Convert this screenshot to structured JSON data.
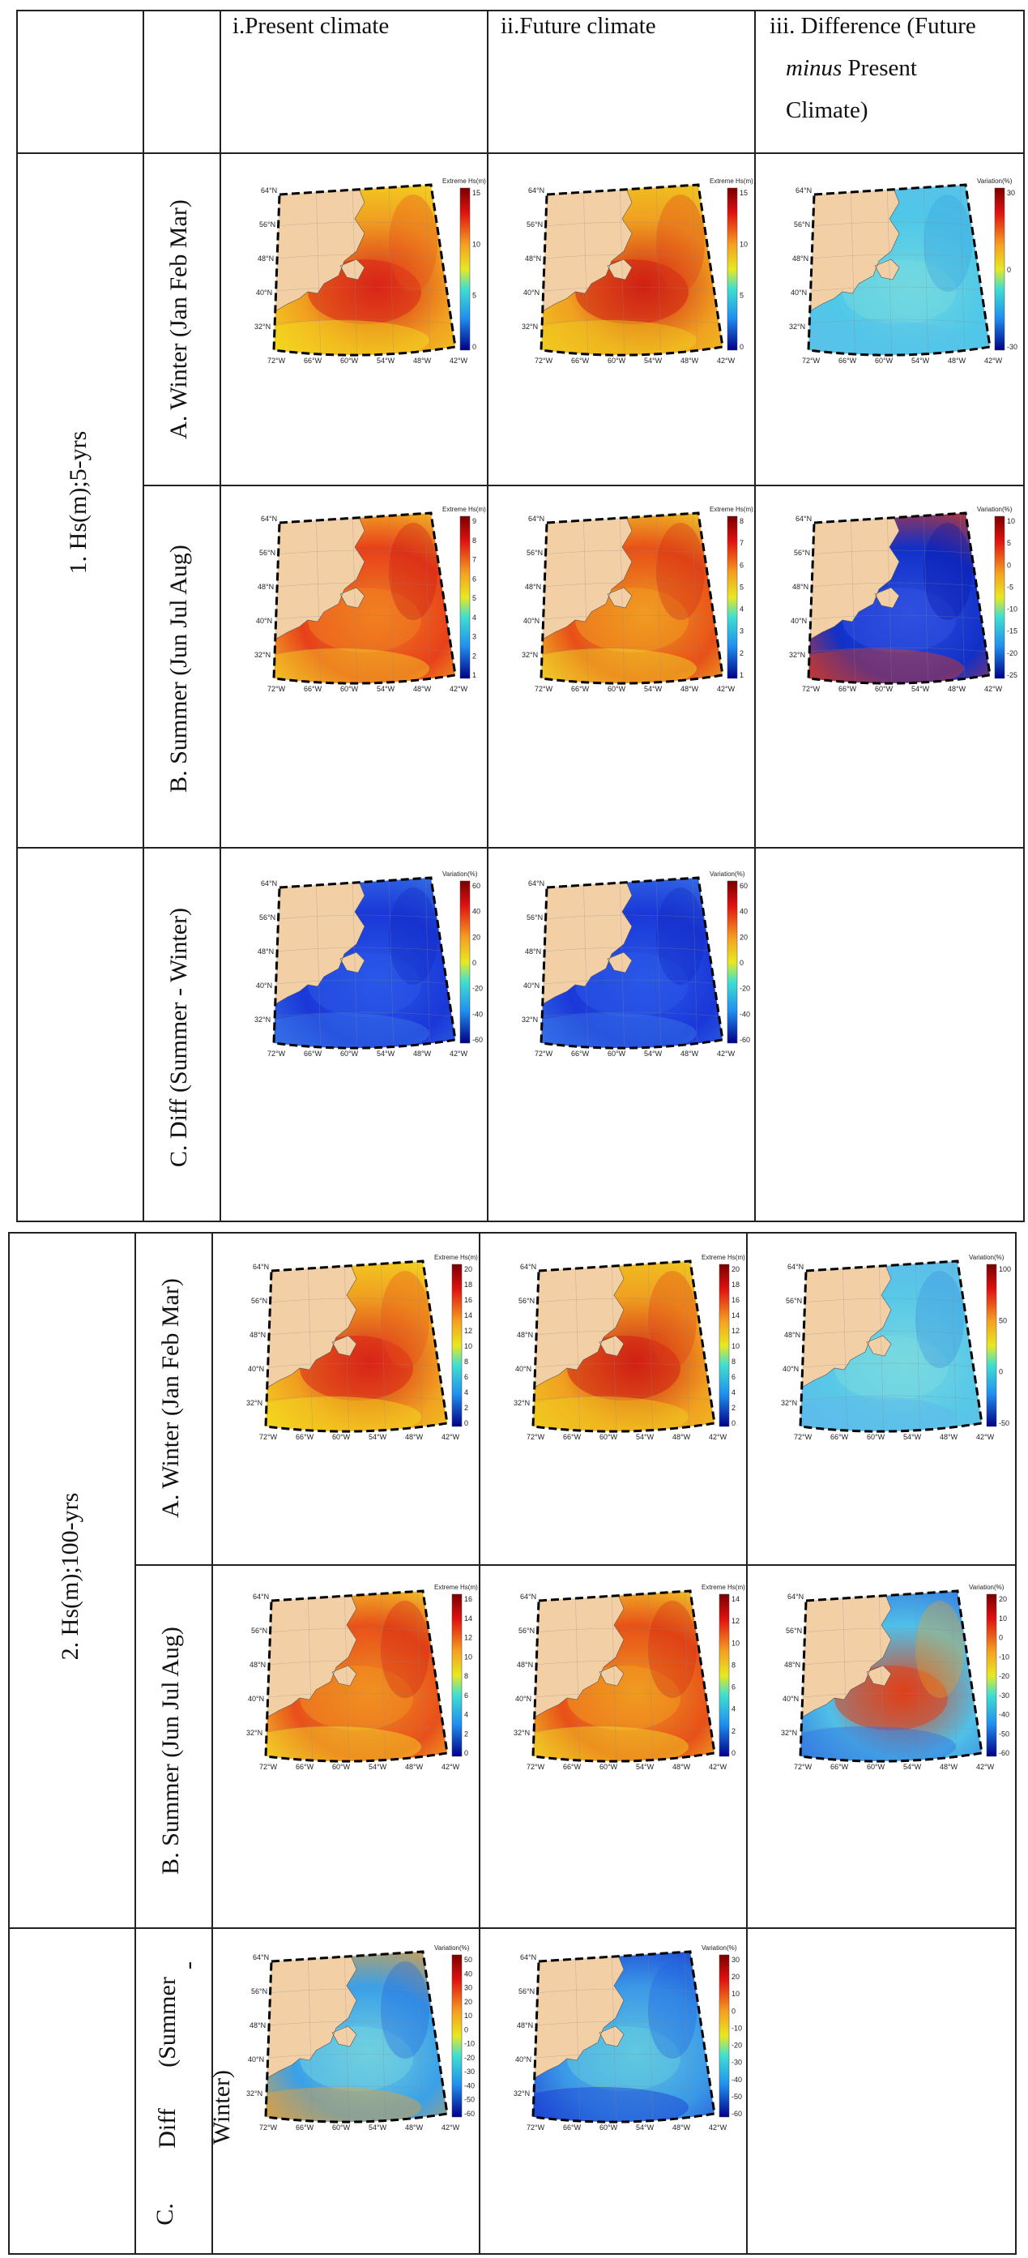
{
  "headers": {
    "present": "i.Present climate",
    "future": "ii.Future climate",
    "diff_line1": "iii. Difference (Future",
    "diff_line2_em": "minus",
    "diff_line2_rest": " Present",
    "diff_line3": "Climate)"
  },
  "groups": [
    {
      "label": "1.  Hs(m);5-yrs",
      "rows": [
        {
          "label": "A. Winter (Jan Feb Mar)"
        },
        {
          "label": "B. Summer (Jun Jul Aug)"
        },
        {
          "label": "C. Diff (Summer - Winter)"
        }
      ]
    },
    {
      "label": "2.  Hs(m);100-yrs",
      "rows": [
        {
          "label": "A.    Winter (Jan Feb Mar)"
        },
        {
          "label": "B.    Summer (Jun Jul Aug)"
        },
        {
          "label_c": "C.",
          "label_diff": "Diff",
          "label_summer": "(Summer",
          "label_dash": "-",
          "label_winter": "Winter)"
        }
      ]
    }
  ],
  "map_labels": {
    "lat": [
      "64°N",
      "56°N",
      "48°N",
      "40°N",
      "32°N"
    ],
    "lon": [
      "72°W",
      "66°W",
      "60°W",
      "54°W",
      "48°W",
      "42°W"
    ]
  },
  "colorbars": {
    "extreme_title": "Extreme Hs(m)",
    "variation_title": "Variation(%)",
    "g1_winter_present": [
      "15",
      "10",
      "5",
      "0"
    ],
    "g1_winter_future": [
      "15",
      "10",
      "5",
      "0"
    ],
    "g1_winter_diff": [
      "30",
      "0",
      "-30"
    ],
    "g1_summer_present": [
      "9",
      "8",
      "7",
      "6",
      "5",
      "4",
      "3",
      "2",
      "1"
    ],
    "g1_summer_future": [
      "8",
      "7",
      "6",
      "5",
      "4",
      "3",
      "2",
      "1"
    ],
    "g1_summer_diff": [
      "10",
      "5",
      "0",
      "-5",
      "-10",
      "-15",
      "-20",
      "-25"
    ],
    "g1_c_present": [
      "60",
      "40",
      "20",
      "0",
      "-20",
      "-40",
      "-60"
    ],
    "g1_c_future": [
      "60",
      "40",
      "20",
      "0",
      "-20",
      "-40",
      "-60"
    ],
    "g2_winter_present": [
      "20",
      "18",
      "16",
      "14",
      "12",
      "10",
      "8",
      "6",
      "4",
      "2",
      "0"
    ],
    "g2_winter_future": [
      "20",
      "18",
      "16",
      "14",
      "12",
      "10",
      "8",
      "6",
      "4",
      "2",
      "0"
    ],
    "g2_winter_diff": [
      "100",
      "50",
      "0",
      "-50"
    ],
    "g2_summer_present": [
      "16",
      "14",
      "12",
      "10",
      "8",
      "6",
      "4",
      "2",
      "0"
    ],
    "g2_summer_future": [
      "14",
      "12",
      "10",
      "8",
      "6",
      "4",
      "2",
      "0"
    ],
    "g2_summer_diff": [
      "20",
      "10",
      "0",
      "-10",
      "-20",
      "-30",
      "-40",
      "-50",
      "-60"
    ],
    "g2_c_present": [
      "50",
      "40",
      "30",
      "20",
      "10",
      "0",
      "-10",
      "-20",
      "-30",
      "-40",
      "-50",
      "-60"
    ],
    "g2_c_future": [
      "30",
      "20",
      "10",
      "0",
      "-10",
      "-20",
      "-30",
      "-40",
      "-50",
      "-60"
    ]
  },
  "colors": {
    "land": "#f3cfa5",
    "ocean_cold": "#1a2fd6",
    "ocean_mid": "#4fc7e8",
    "ocean_hot": "#e8301c",
    "border": "#222222"
  }
}
